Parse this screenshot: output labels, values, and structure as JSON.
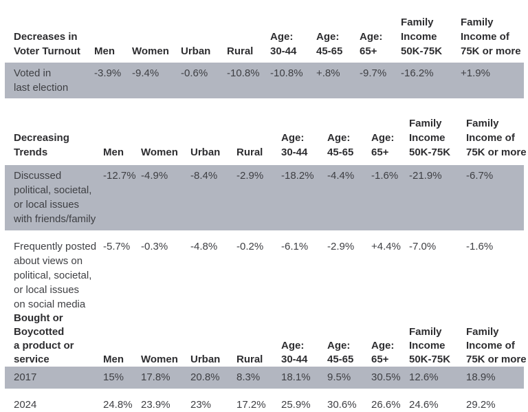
{
  "colors": {
    "band": "#b2b6c0",
    "heading_text": "#2d2d30",
    "body_text": "#3e3f43",
    "background": "#ffffff"
  },
  "columns": [
    "Men",
    "Women",
    "Urban",
    "Rural",
    "Age:\n30-44",
    "Age:\n45-65",
    "Age:\n65+",
    "Family\nIncome\n50K-75K",
    "Family\nIncome of\n75K or more"
  ],
  "sections": [
    {
      "title": "Decreases in\nVoter Turnout",
      "rows": [
        {
          "label": "Voted in\nlast election",
          "highlighted": true,
          "values": [
            "-3.9%",
            "-9.4%",
            "-0.6%",
            "-10.8%",
            "-10.8%",
            "+.8%",
            "-9.7%",
            "-16.2%",
            "+1.9%"
          ]
        }
      ]
    },
    {
      "title": "Decreasing\nTrends",
      "rows": [
        {
          "label": "Discussed\npolitical, societal,\nor local issues\nwith friends/family",
          "highlighted": true,
          "values": [
            "-12.7%",
            "-4.9%",
            "-8.4%",
            "-2.9%",
            "-18.2%",
            "-4.4%",
            "-1.6%",
            "-21.9%",
            "-6.7%"
          ]
        },
        {
          "label": "Frequently posted\nabout views on\npolitical, societal,\nor local issues\non social media",
          "highlighted": false,
          "values": [
            "-5.7%",
            "-0.3%",
            "-4.8%",
            "-0.2%",
            "-6.1%",
            "-2.9%",
            "+4.4%",
            "-7.0%",
            "-1.6%"
          ]
        }
      ]
    },
    {
      "title": "Bought or\nBoycotted\na product or\nservice",
      "rows": [
        {
          "label": "2017",
          "highlighted": true,
          "values": [
            "15%",
            "17.8%",
            "20.8%",
            "8.3%",
            "18.1%",
            "9.5%",
            "30.5%",
            "12.6%",
            "18.9%"
          ]
        },
        {
          "label": "2024",
          "highlighted": false,
          "values": [
            "24.8%",
            "23.9%",
            "23%",
            "17.2%",
            "25.9%",
            "30.6%",
            "26.6%",
            "24.6%",
            "29.2%"
          ]
        }
      ]
    }
  ]
}
